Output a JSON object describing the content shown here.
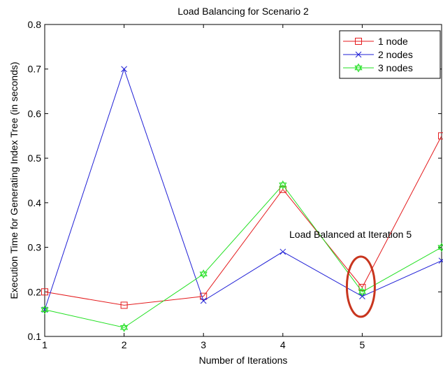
{
  "chart_data": {
    "type": "line",
    "title": "Load Balancing for Scenario 2",
    "xlabel": "Number of Iterations",
    "ylabel": "Execution Time for Generating Index Tree (in seconds)",
    "xlim": [
      1,
      6
    ],
    "ylim": [
      0.1,
      0.8
    ],
    "x": [
      1,
      2,
      3,
      4,
      5,
      6
    ],
    "xticks": [
      1,
      2,
      3,
      4,
      5
    ],
    "yticks": [
      0.1,
      0.2,
      0.3,
      0.4,
      0.5,
      0.6,
      0.7,
      0.8
    ],
    "grid": false,
    "legend_position": "top-right",
    "series": [
      {
        "name": "1 node",
        "color": "#e41a1c",
        "marker": "square",
        "values": [
          0.2,
          0.17,
          0.19,
          0.43,
          0.21,
          0.55
        ]
      },
      {
        "name": "2 nodes",
        "color": "#1f1fd6",
        "marker": "x",
        "values": [
          0.16,
          0.7,
          0.18,
          0.29,
          0.19,
          0.27
        ]
      },
      {
        "name": "3 nodes",
        "color": "#22e022",
        "marker": "hexagram",
        "values": [
          0.16,
          0.12,
          0.24,
          0.44,
          0.2,
          0.3
        ]
      }
    ],
    "annotations": [
      {
        "text": "Load Balanced at Iteration 5",
        "x": 5,
        "y": 0.21,
        "shape": "ellipse",
        "color": "#c8351e"
      }
    ]
  }
}
